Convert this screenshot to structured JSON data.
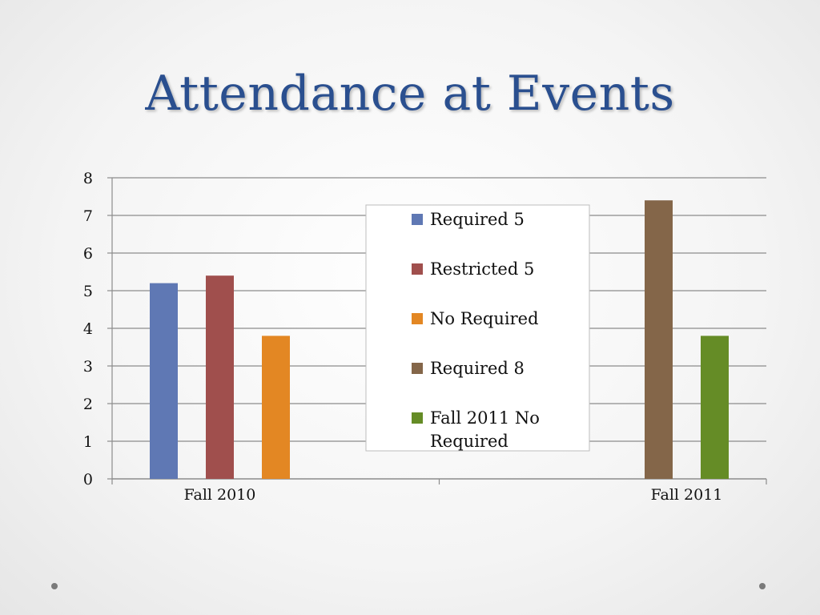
{
  "slide": {
    "title": "Attendance at Events"
  },
  "colors": {
    "title": "#2a4f8f",
    "Required 5": "#5f78b4",
    "Restricted 5": "#a04f4d",
    "No Required": "#e38723",
    "Required 8": "#846649",
    "Fall 2011 No Required": "#658c26"
  },
  "chart_data": {
    "type": "bar",
    "categories": [
      "Fall 2010",
      "Fall 2011"
    ],
    "series": [
      {
        "name": "Required 5",
        "values": [
          5.2,
          null
        ]
      },
      {
        "name": "Restricted 5",
        "values": [
          5.4,
          null
        ]
      },
      {
        "name": "No Required",
        "values": [
          3.8,
          null
        ]
      },
      {
        "name": "Required 8",
        "values": [
          null,
          7.4
        ]
      },
      {
        "name": "Fall 2011 No Required",
        "values": [
          null,
          3.8
        ]
      }
    ],
    "yticks": [
      "0",
      "1",
      "2",
      "3",
      "4",
      "5",
      "6",
      "7",
      "8"
    ],
    "ylim": [
      0,
      8
    ],
    "title": "",
    "xlabel": "",
    "ylabel": "",
    "grid": true,
    "legend": {
      "placement": "center",
      "entries": [
        {
          "lines": [
            "Required 5"
          ]
        },
        {
          "lines": [
            "Restricted 5"
          ]
        },
        {
          "lines": [
            "No Required"
          ]
        },
        {
          "lines": [
            "Required 8"
          ]
        },
        {
          "lines": [
            "Fall 2011 No",
            "Required"
          ]
        }
      ]
    }
  }
}
